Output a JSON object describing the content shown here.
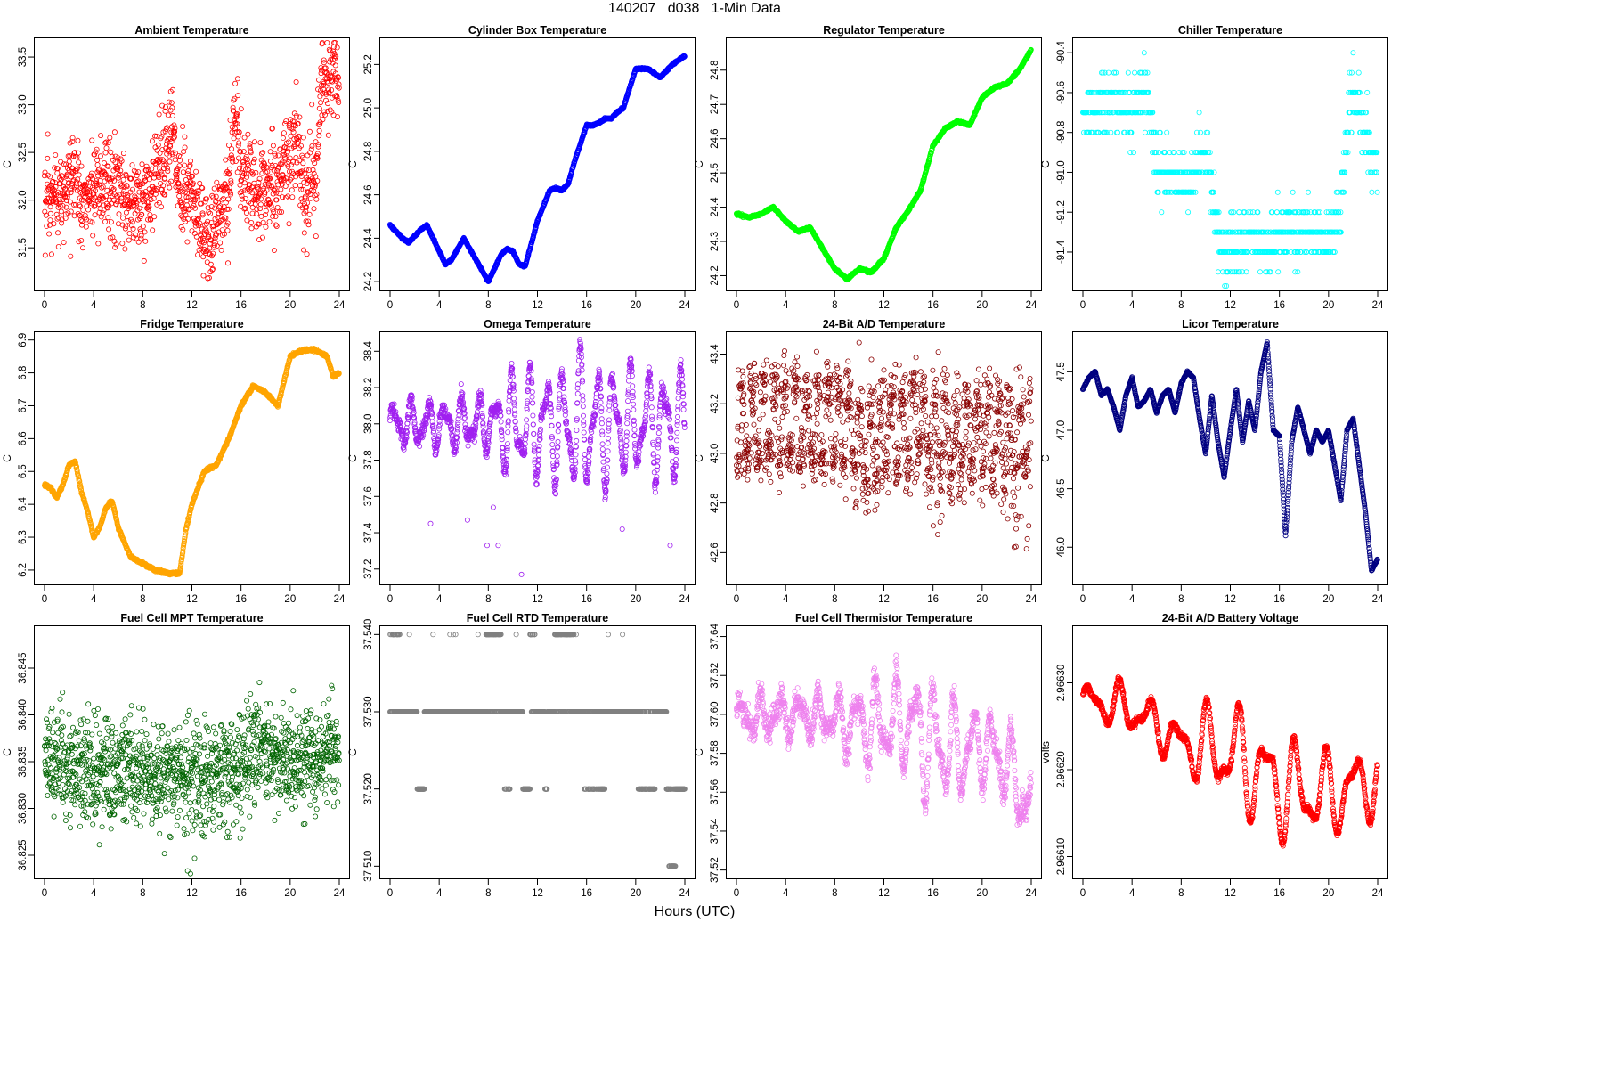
{
  "figure": {
    "title": "140207   d038   1-Min Data",
    "xlabel": "Hours (UTC)"
  },
  "chart_data": [
    {
      "type": "scatter",
      "title": "Ambient Temperature",
      "ylabel": "C",
      "color": "#ff0000",
      "xlim": [
        0,
        24
      ],
      "xticks": [
        0,
        4,
        8,
        12,
        16,
        20,
        24
      ],
      "ylim": [
        31.1,
        33.65
      ],
      "yticks": [
        31.5,
        32.0,
        32.5,
        33.0,
        33.5
      ],
      "ytick_labels": [
        "31.5",
        "32.0",
        "32.5",
        "33.0",
        "33.5"
      ],
      "pattern": "noisy",
      "noise": 0.25,
      "n": 1300,
      "profile_x": [
        0,
        1,
        2,
        2.5,
        3,
        4,
        5,
        6,
        7,
        8,
        9,
        9.5,
        10,
        10.5,
        11,
        12,
        13,
        13.5,
        14,
        15,
        15.5,
        16,
        17,
        18,
        19,
        20,
        20.5,
        21,
        22,
        22.5,
        23,
        24
      ],
      "profile_y": [
        31.9,
        32.0,
        32.1,
        32.3,
        32.0,
        32.1,
        32.1,
        32.1,
        32.0,
        31.9,
        32.3,
        32.4,
        32.6,
        32.7,
        32.1,
        32.0,
        31.8,
        31.4,
        31.9,
        32.0,
        33.0,
        32.3,
        32.1,
        32.1,
        32.2,
        32.5,
        32.6,
        32.1,
        32.2,
        33.1,
        33.3,
        33.3
      ]
    },
    {
      "type": "scatter",
      "title": "Cylinder Box Temperature",
      "ylabel": "C",
      "color": "#0000ff",
      "xlim": [
        0,
        24
      ],
      "xticks": [
        0,
        4,
        8,
        12,
        16,
        20,
        24
      ],
      "ylim": [
        24.18,
        25.3
      ],
      "yticks": [
        24.2,
        24.4,
        24.6,
        24.8,
        25.0,
        25.2
      ],
      "ytick_labels": [
        "24.2",
        "24.4",
        "24.6",
        "24.8",
        "25.0",
        "25.2"
      ],
      "pattern": "smooth",
      "noise": 0.004,
      "n": 1440,
      "profile_x": [
        0,
        1,
        1.5,
        2.5,
        3,
        4,
        4.5,
        5,
        6,
        7,
        8,
        8.5,
        9,
        9.5,
        10,
        10.5,
        11,
        12,
        13,
        13.5,
        14,
        14.5,
        15,
        16,
        16.5,
        17,
        17.5,
        18,
        18.5,
        19,
        20,
        21,
        22,
        23,
        24
      ],
      "profile_y": [
        24.46,
        24.4,
        24.38,
        24.44,
        24.46,
        24.34,
        24.28,
        24.3,
        24.4,
        24.3,
        24.2,
        24.26,
        24.32,
        24.35,
        24.34,
        24.28,
        24.27,
        24.48,
        24.62,
        24.63,
        24.62,
        24.65,
        24.75,
        24.92,
        24.92,
        24.93,
        24.95,
        24.95,
        24.98,
        25.0,
        25.18,
        25.18,
        25.14,
        25.2,
        25.24
      ]
    },
    {
      "type": "scatter",
      "title": "Regulator Temperature",
      "ylabel": "C",
      "color": "#00ff00",
      "xlim": [
        0,
        24
      ],
      "xticks": [
        0,
        4,
        8,
        12,
        16,
        20,
        24
      ],
      "ylim": [
        24.17,
        24.88
      ],
      "yticks": [
        24.2,
        24.3,
        24.4,
        24.5,
        24.6,
        24.7,
        24.8
      ],
      "ytick_labels": [
        "24.2",
        "24.3",
        "24.4",
        "24.5",
        "24.6",
        "24.7",
        "24.8"
      ],
      "pattern": "smooth",
      "noise": 0.003,
      "n": 1440,
      "profile_x": [
        0,
        1,
        2,
        3,
        4,
        5,
        6,
        7,
        8,
        9,
        10,
        11,
        12,
        13,
        14,
        15,
        16,
        17,
        18,
        19,
        20,
        21,
        22,
        23,
        24
      ],
      "profile_y": [
        24.38,
        24.37,
        24.38,
        24.4,
        24.36,
        24.33,
        24.34,
        24.28,
        24.22,
        24.19,
        24.22,
        24.21,
        24.25,
        24.34,
        24.39,
        24.45,
        24.58,
        24.63,
        24.65,
        24.64,
        24.72,
        24.75,
        24.76,
        24.8,
        24.86
      ]
    },
    {
      "type": "scatter",
      "title": "Chiller Temperature",
      "ylabel": "C",
      "color": "#00ffff",
      "xlim": [
        0,
        24
      ],
      "xticks": [
        0,
        4,
        8,
        12,
        16,
        20,
        24
      ],
      "ylim": [
        -91.57,
        -90.35
      ],
      "yticks": [
        -91.4,
        -91.2,
        -91.0,
        -90.8,
        -90.6,
        -90.4
      ],
      "ytick_labels": [
        "-91.4",
        "-91.2",
        "-91.0",
        "-90.8",
        "-90.6",
        "-90.4"
      ],
      "pattern": "quantized",
      "step": 0.1,
      "noise": 0.12,
      "n": 900,
      "profile_x": [
        0,
        1,
        2,
        3,
        4,
        4.5,
        5,
        5.5,
        6,
        7,
        8,
        9,
        10,
        11,
        11.5,
        12,
        13,
        14,
        15,
        16,
        17,
        18,
        19,
        20,
        21,
        21.5,
        22,
        23,
        24
      ],
      "profile_y": [
        -90.7,
        -90.7,
        -90.65,
        -90.65,
        -90.7,
        -90.6,
        -90.55,
        -90.7,
        -91.0,
        -91.0,
        -91.05,
        -91.0,
        -90.9,
        -91.3,
        -91.4,
        -91.4,
        -91.35,
        -91.3,
        -91.4,
        -91.3,
        -91.25,
        -91.3,
        -91.3,
        -91.35,
        -91.2,
        -90.8,
        -90.6,
        -90.8,
        -91.0
      ]
    },
    {
      "type": "scatter",
      "title": "Fridge Temperature",
      "ylabel": "C",
      "color": "#ffa500",
      "xlim": [
        0,
        24
      ],
      "xticks": [
        0,
        4,
        8,
        12,
        16,
        20,
        24
      ],
      "ylim": [
        6.17,
        6.91
      ],
      "yticks": [
        6.2,
        6.3,
        6.4,
        6.5,
        6.6,
        6.7,
        6.8,
        6.9
      ],
      "ytick_labels": [
        "6.2",
        "6.3",
        "6.4",
        "6.5",
        "6.6",
        "6.7",
        "6.8",
        "6.9"
      ],
      "pattern": "smooth",
      "noise": 0.004,
      "n": 1440,
      "profile_x": [
        0,
        0.5,
        1,
        1.5,
        2,
        2.5,
        3,
        3.5,
        4,
        4.5,
        5,
        5.5,
        6,
        7,
        8,
        9,
        10,
        10.5,
        11,
        11.5,
        12,
        13,
        14,
        15,
        16,
        17,
        18,
        19,
        20,
        21,
        22,
        23,
        23.5,
        24
      ],
      "profile_y": [
        6.46,
        6.45,
        6.42,
        6.46,
        6.52,
        6.53,
        6.44,
        6.38,
        6.3,
        6.33,
        6.39,
        6.41,
        6.33,
        6.24,
        6.22,
        6.2,
        6.19,
        6.19,
        6.19,
        6.32,
        6.4,
        6.5,
        6.52,
        6.6,
        6.7,
        6.76,
        6.74,
        6.7,
        6.85,
        6.87,
        6.87,
        6.85,
        6.79,
        6.8
      ]
    },
    {
      "type": "scatter",
      "title": "Omega Temperature",
      "ylabel": "C",
      "color": "#a020f0",
      "xlim": [
        0,
        24
      ],
      "xticks": [
        0,
        4,
        8,
        12,
        16,
        20,
        24
      ],
      "ylim": [
        37.14,
        38.48
      ],
      "yticks": [
        37.2,
        37.4,
        37.6,
        37.8,
        38.0,
        38.2,
        38.4
      ],
      "ytick_labels": [
        "37.2",
        "37.4",
        "37.6",
        "37.8",
        "38.0",
        "38.2",
        "38.4"
      ],
      "pattern": "oscillating",
      "noise": 0.02,
      "n": 1440,
      "profile_x": [
        0,
        4,
        8,
        10,
        12,
        16,
        20,
        24
      ],
      "profile_y": [
        38.0,
        38.0,
        38.0,
        38.0,
        38.0,
        38.0,
        38.0,
        38.0
      ],
      "amp_x": [
        0,
        8,
        10,
        14,
        15,
        16,
        20,
        24
      ],
      "amp_y": [
        0.12,
        0.15,
        0.3,
        0.3,
        0.42,
        0.35,
        0.3,
        0.3
      ],
      "freq": 1.6,
      "outliers": [
        [
          3.3,
          37.45
        ],
        [
          6.3,
          37.47
        ],
        [
          7.9,
          37.33
        ],
        [
          8.8,
          37.33
        ],
        [
          8.4,
          37.54
        ],
        [
          10.7,
          37.17
        ],
        [
          18.9,
          37.42
        ],
        [
          22.8,
          37.33
        ]
      ]
    },
    {
      "type": "scatter",
      "title": "24-Bit A/D Temperature",
      "ylabel": "C",
      "color": "#8b0000",
      "xlim": [
        0,
        24
      ],
      "xticks": [
        0,
        4,
        8,
        12,
        16,
        20,
        24
      ],
      "ylim": [
        42.49,
        43.47
      ],
      "yticks": [
        42.6,
        42.8,
        43.0,
        43.2,
        43.4
      ],
      "ytick_labels": [
        "42.6",
        "42.8",
        "43.0",
        "43.2",
        "43.4"
      ],
      "pattern": "bimodal",
      "noise": 0.06,
      "n": 1440,
      "levels": [
        43.0,
        43.25
      ],
      "profile_x": [
        0,
        8,
        10,
        12,
        15,
        16,
        20,
        24
      ],
      "profile_y": [
        0,
        0,
        -0.15,
        -0.1,
        0,
        -0.2,
        -0.1,
        -0.3
      ]
    },
    {
      "type": "scatter",
      "title": "Licor Temperature",
      "ylabel": "C",
      "color": "#000080",
      "xlim": [
        0,
        24
      ],
      "xticks": [
        0,
        4,
        8,
        12,
        16,
        20,
        24
      ],
      "ylim": [
        45.72,
        47.8
      ],
      "yticks": [
        46.0,
        46.5,
        47.0,
        47.5
      ],
      "ytick_labels": [
        "46.0",
        "46.5",
        "47.0",
        "47.5"
      ],
      "pattern": "smooth",
      "noise": 0.006,
      "n": 1440,
      "profile_x": [
        0,
        0.5,
        1,
        1.5,
        2,
        2.5,
        3,
        3.5,
        4,
        4.5,
        5,
        5.5,
        6,
        6.5,
        7,
        7.5,
        8,
        8.5,
        9,
        9.5,
        10,
        10.5,
        11,
        11.5,
        12,
        12.5,
        13,
        13.5,
        14,
        14.5,
        15,
        15.5,
        16,
        16.5,
        17,
        17.5,
        18,
        18.5,
        19,
        19.5,
        20,
        20.5,
        21,
        21.5,
        22,
        22.5,
        23,
        23.5,
        24
      ],
      "profile_y": [
        47.35,
        47.45,
        47.5,
        47.3,
        47.35,
        47.2,
        47.0,
        47.3,
        47.45,
        47.2,
        47.25,
        47.35,
        47.15,
        47.3,
        47.35,
        47.15,
        47.4,
        47.5,
        47.45,
        47.1,
        46.8,
        47.3,
        46.9,
        46.6,
        47.0,
        47.35,
        46.9,
        47.25,
        47.0,
        47.5,
        47.75,
        47.0,
        46.95,
        46.1,
        46.9,
        47.2,
        47.0,
        46.8,
        47.0,
        46.9,
        47.0,
        46.7,
        46.4,
        47.0,
        47.1,
        46.7,
        46.3,
        45.8,
        45.9
      ]
    },
    {
      "type": "scatter",
      "title": "Fuel Cell MPT Temperature",
      "ylabel": "C",
      "color": "#006400",
      "xlim": [
        0,
        24
      ],
      "xticks": [
        0,
        4,
        8,
        12,
        16,
        20,
        24
      ],
      "ylim": [
        36.823,
        36.849
      ],
      "yticks": [
        36.825,
        36.83,
        36.835,
        36.84,
        36.845
      ],
      "ytick_labels": [
        "36.825",
        "36.830",
        "36.835",
        "36.840",
        "36.845"
      ],
      "pattern": "noisy",
      "noise": 0.0028,
      "n": 1440,
      "profile_x": [
        0,
        4,
        8,
        12,
        15,
        16.5,
        17,
        20,
        24
      ],
      "profile_y": [
        36.835,
        36.834,
        36.834,
        36.833,
        36.834,
        36.835,
        36.837,
        36.835,
        36.836
      ]
    },
    {
      "type": "scatter",
      "title": "Fuel Cell RTD Temperature",
      "ylabel": "C",
      "color": "#808080",
      "xlim": [
        0,
        24
      ],
      "xticks": [
        0,
        4,
        8,
        12,
        16,
        20,
        24
      ],
      "ylim": [
        37.509,
        37.5405
      ],
      "yticks": [
        37.51,
        37.52,
        37.53,
        37.54
      ],
      "ytick_labels": [
        "37.510",
        "37.520",
        "37.530",
        "37.540"
      ],
      "pattern": "rtd",
      "n": 1440
    },
    {
      "type": "scatter",
      "title": "Fuel Cell Thermistor Temperature",
      "ylabel": "C",
      "color": "#ee82ee",
      "xlim": [
        0,
        24
      ],
      "xticks": [
        0,
        4,
        8,
        12,
        16,
        20,
        24
      ],
      "ylim": [
        37.518,
        37.643
      ],
      "yticks": [
        37.52,
        37.54,
        37.56,
        37.58,
        37.6,
        37.62,
        37.64
      ],
      "ytick_labels": [
        "37.52",
        "37.54",
        "37.56",
        "37.58",
        "37.60",
        "37.62",
        "37.64"
      ],
      "pattern": "oscillating",
      "noise": 0.003,
      "n": 1440,
      "profile_x": [
        0,
        4,
        8,
        10,
        12,
        14,
        16,
        18,
        20,
        22,
        24
      ],
      "profile_y": [
        37.598,
        37.6,
        37.598,
        37.595,
        37.595,
        37.595,
        37.585,
        37.58,
        37.585,
        37.575,
        37.55
      ],
      "amp_x": [
        0,
        8,
        10,
        14,
        15,
        16,
        18,
        20,
        24
      ],
      "amp_y": [
        0.01,
        0.012,
        0.02,
        0.025,
        0.035,
        0.03,
        0.025,
        0.02,
        0.02
      ],
      "freq": 1.4
    },
    {
      "type": "scatter",
      "title": "24-Bit A/D Battery Voltage",
      "ylabel": "volts",
      "color": "#ff0000",
      "xlim": [
        0,
        24
      ],
      "xticks": [
        0,
        4,
        8,
        12,
        16,
        20,
        24
      ],
      "ylim": [
        2.96608,
        2.96636
      ],
      "yticks": [
        2.9661,
        2.9662,
        2.9663
      ],
      "ytick_labels": [
        "2.96610",
        "2.96620",
        "2.96630"
      ],
      "pattern": "oscillating",
      "noise": 2e-06,
      "n": 1440,
      "profile_x": [
        0,
        4,
        8,
        12,
        16,
        20,
        24
      ],
      "profile_y": [
        2.96628,
        2.96627,
        2.96623,
        2.96622,
        2.96618,
        2.96617,
        2.96619
      ],
      "amp_x": [
        0,
        4,
        8,
        10,
        12,
        16,
        20,
        24
      ],
      "amp_y": [
        2e-05,
        3e-05,
        2.5e-05,
        5e-05,
        6e-05,
        6e-05,
        5e-05,
        4e-05
      ],
      "freq": 0.92
    }
  ]
}
